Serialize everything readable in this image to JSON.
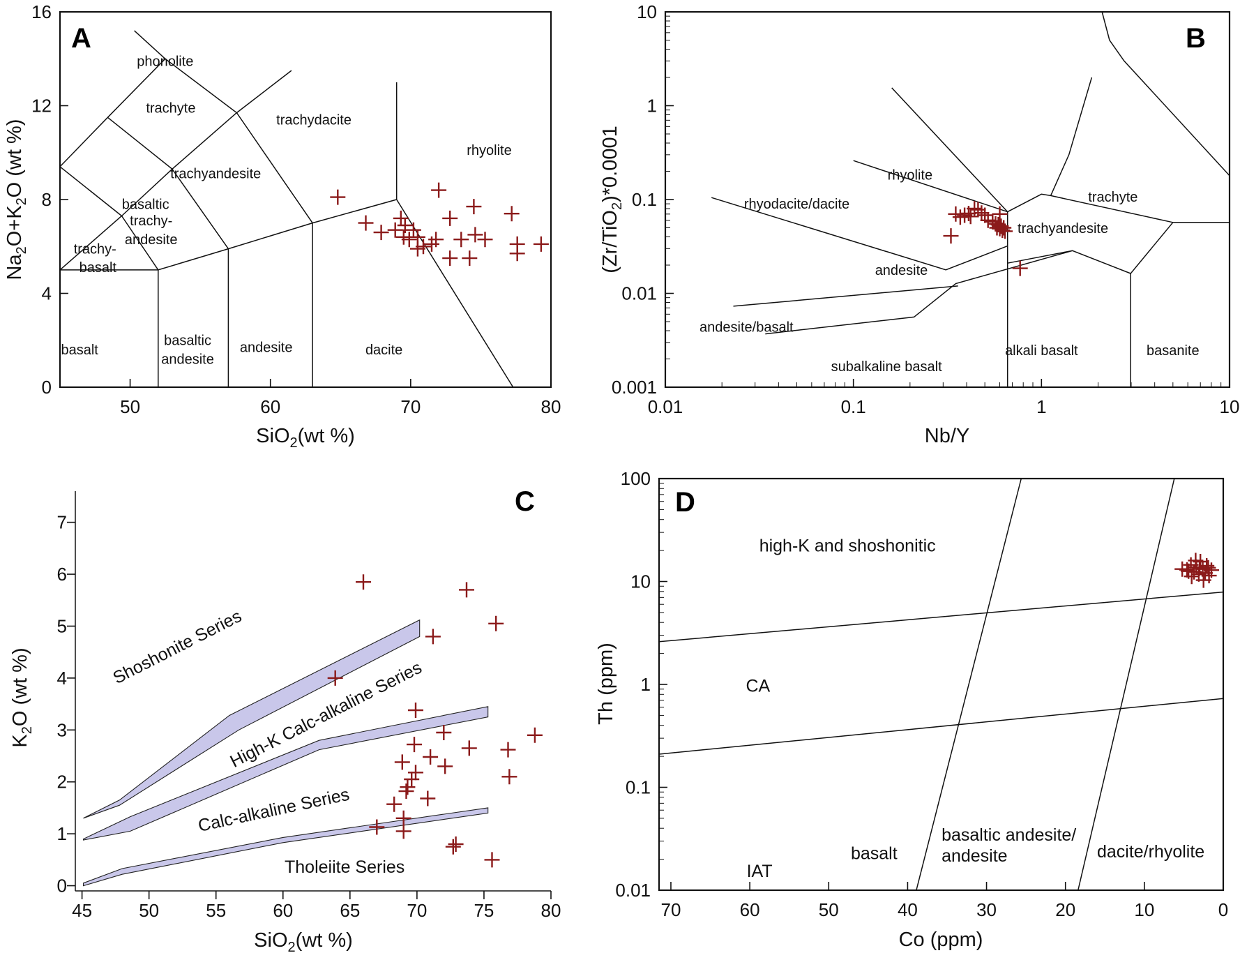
{
  "figure": {
    "marker_color": "#8b1a1a",
    "band_color": "#c9c7ea"
  },
  "chart_data": [
    {
      "panel": "A",
      "type": "scatter",
      "xlabel": "SiO",
      "xlabel_sub": "2",
      "xlabel_tail": "(wt %)",
      "ylabel_parts": [
        "Na",
        "2",
        "O+K",
        "2",
        "O (wt %)"
      ],
      "xlim": [
        45,
        80
      ],
      "ylim": [
        0,
        16
      ],
      "xticks": [
        50,
        60,
        70,
        80
      ],
      "yticks": [
        0,
        4,
        8,
        12,
        16
      ],
      "fields": [
        {
          "name": "phonolite",
          "x": 52.5,
          "y": 13.7
        },
        {
          "name": "trachyte",
          "x": 52.9,
          "y": 11.7
        },
        {
          "name": "trachydacite",
          "x": 63.1,
          "y": 11.2
        },
        {
          "name": "rhyolite",
          "x": 75.6,
          "y": 9.9
        },
        {
          "name": "trachyandesite",
          "x": 56.1,
          "y": 8.9
        },
        {
          "name": "basaltic",
          "x": 51.1,
          "y": 7.6
        },
        {
          "name": "trachy-",
          "x": 51.5,
          "y": 6.9
        },
        {
          "name": "andesite",
          "x": 51.5,
          "y": 6.1
        },
        {
          "name": "trachy-",
          "x": 47.5,
          "y": 5.7
        },
        {
          "name": "basalt",
          "x": 47.7,
          "y": 4.9
        },
        {
          "name": "basalt",
          "x": 46.4,
          "y": 1.4
        },
        {
          "name": "basaltic",
          "x": 54.1,
          "y": 1.8
        },
        {
          "name": "andesite",
          "x": 54.1,
          "y": 1.0
        },
        {
          "name": "andesite",
          "x": 59.7,
          "y": 1.5
        },
        {
          "name": "dacite",
          "x": 68.1,
          "y": 1.4
        }
      ],
      "boundaries": [
        [
          [
            45,
            5
          ],
          [
            52,
            5
          ],
          [
            57,
            5.9
          ],
          [
            63,
            7
          ],
          [
            69,
            8
          ],
          [
            69,
            13
          ]
        ],
        [
          [
            52,
            0
          ],
          [
            52,
            5
          ]
        ],
        [
          [
            57,
            0
          ],
          [
            57,
            5.9
          ]
        ],
        [
          [
            63,
            0
          ],
          [
            63,
            7
          ]
        ],
        [
          [
            77.3,
            0
          ],
          [
            69,
            8
          ]
        ],
        [
          [
            45,
            5
          ],
          [
            49.4,
            7.3
          ],
          [
            53,
            9.3
          ],
          [
            57.6,
            11.7
          ],
          [
            61.5,
            13.5
          ]
        ],
        [
          [
            45,
            9.4
          ],
          [
            48.4,
            11.5
          ],
          [
            52.5,
            14
          ],
          [
            57.6,
            11.7
          ],
          [
            63,
            7
          ]
        ],
        [
          [
            48.4,
            11.5
          ],
          [
            53,
            9.3
          ],
          [
            57,
            5.9
          ]
        ],
        [
          [
            49.4,
            7.3
          ],
          [
            52,
            5
          ]
        ],
        [
          [
            52.5,
            14
          ],
          [
            50.3,
            15.2
          ]
        ],
        [
          [
            45,
            9.4
          ],
          [
            49.4,
            7.3
          ]
        ]
      ],
      "points": [
        [
          64.8,
          8.1
        ],
        [
          66.8,
          7.0
        ],
        [
          67.9,
          6.6
        ],
        [
          68.9,
          6.7
        ],
        [
          69.3,
          7.2
        ],
        [
          69.6,
          6.9
        ],
        [
          69.5,
          6.4
        ],
        [
          69.9,
          6.3
        ],
        [
          70.2,
          6.7
        ],
        [
          70.5,
          6.4
        ],
        [
          70.5,
          5.9
        ],
        [
          70.9,
          6.0
        ],
        [
          71.5,
          6.1
        ],
        [
          71.8,
          6.3
        ],
        [
          72.0,
          8.4
        ],
        [
          72.8,
          7.2
        ],
        [
          72.8,
          5.5
        ],
        [
          73.6,
          6.3
        ],
        [
          74.2,
          5.5
        ],
        [
          74.5,
          7.7
        ],
        [
          74.6,
          6.5
        ],
        [
          75.3,
          6.3
        ],
        [
          77.2,
          7.4
        ],
        [
          77.6,
          6.1
        ],
        [
          77.6,
          5.7
        ],
        [
          79.3,
          6.1
        ]
      ]
    },
    {
      "panel": "B",
      "type": "scatter",
      "xlabel": "Nb/Y",
      "ylabel_parts": [
        "(Zr/TiO",
        "2",
        ")*0.0001"
      ],
      "xscale": "log",
      "yscale": "log",
      "xlim": [
        0.01,
        10
      ],
      "ylim": [
        0.001,
        10
      ],
      "xticks": [
        0.01,
        0.1,
        1,
        10
      ],
      "xtick_labels": [
        "0.01",
        "0.1",
        "1",
        "10"
      ],
      "yticks": [
        0.001,
        0.01,
        0.1,
        1,
        10
      ],
      "ytick_labels": [
        "0.001",
        "0.01",
        "0.1",
        "1",
        "10"
      ],
      "fields": [
        {
          "name": "rhyolite",
          "x": 0.2,
          "y": 0.163
        },
        {
          "name": "trachyte",
          "x": 2.4,
          "y": 0.095
        },
        {
          "name": "rhyodacite/dacite",
          "x": 0.05,
          "y": 0.08
        },
        {
          "name": "trachyandesite",
          "x": 1.3,
          "y": 0.044
        },
        {
          "name": "andesite",
          "x": 0.18,
          "y": 0.0158
        },
        {
          "name": "andesite/basalt",
          "x": 0.027,
          "y": 0.0039
        },
        {
          "name": "subalkaline basalt",
          "x": 0.15,
          "y": 0.00148
        },
        {
          "name": "alkali basalt",
          "x": 1.0,
          "y": 0.0022
        },
        {
          "name": "basanite",
          "x": 5.0,
          "y": 0.0022
        }
      ],
      "boundaries": [
        [
          [
            0.0176,
            0.105
          ],
          [
            0.31,
            0.0178
          ],
          [
            0.66,
            0.032
          ]
        ],
        [
          [
            0.1,
            0.26
          ],
          [
            0.66,
            0.074
          ]
        ],
        [
          [
            0.16,
            1.55
          ],
          [
            0.66,
            0.074
          ]
        ],
        [
          [
            0.023,
            0.0073
          ],
          [
            0.36,
            0.012
          ]
        ],
        [
          [
            0.034,
            0.0037
          ],
          [
            0.21,
            0.0056
          ],
          [
            0.35,
            0.0127
          ],
          [
            1.46,
            0.0285
          ],
          [
            2.98,
            0.0163
          ]
        ],
        [
          [
            0.66,
            0.001
          ],
          [
            0.66,
            0.074
          ]
        ],
        [
          [
            0.66,
            0.074
          ],
          [
            1.0,
            0.114
          ],
          [
            1.12,
            0.11
          ],
          [
            5.0,
            0.057
          ],
          [
            10,
            0.057
          ]
        ],
        [
          [
            1.12,
            0.11
          ],
          [
            1.4,
            0.3
          ],
          [
            1.85,
            2.0
          ]
        ],
        [
          [
            5.0,
            0.057
          ],
          [
            2.98,
            0.0163
          ],
          [
            2.98,
            0.001
          ]
        ],
        [
          [
            2.1,
            10
          ],
          [
            2.3,
            5
          ],
          [
            2.75,
            3.0
          ],
          [
            10,
            0.18
          ]
        ],
        [
          [
            0.66,
            0.021
          ],
          [
            1.46,
            0.0285
          ]
        ]
      ],
      "points": [
        [
          0.35,
          0.07
        ],
        [
          0.37,
          0.065
        ],
        [
          0.39,
          0.068
        ],
        [
          0.41,
          0.071
        ],
        [
          0.42,
          0.066
        ],
        [
          0.44,
          0.08
        ],
        [
          0.46,
          0.078
        ],
        [
          0.48,
          0.072
        ],
        [
          0.5,
          0.068
        ],
        [
          0.52,
          0.06
        ],
        [
          0.55,
          0.058
        ],
        [
          0.57,
          0.055
        ],
        [
          0.58,
          0.05
        ],
        [
          0.59,
          0.054
        ],
        [
          0.6,
          0.049
        ],
        [
          0.61,
          0.052
        ],
        [
          0.62,
          0.047
        ],
        [
          0.63,
          0.05
        ],
        [
          0.64,
          0.046
        ],
        [
          0.6,
          0.07
        ],
        [
          0.33,
          0.041
        ],
        [
          0.77,
          0.0185
        ]
      ]
    },
    {
      "panel": "C",
      "type": "scatter",
      "xlabel": "SiO",
      "xlabel_sub": "2",
      "xlabel_tail": "(wt %)",
      "ylabel_parts": [
        "K",
        "2",
        "O (wt %)"
      ],
      "xlim": [
        44.5,
        80
      ],
      "ylim": [
        -0.1,
        7.6
      ],
      "xticks": [
        45,
        50,
        55,
        60,
        65,
        70,
        75,
        80
      ],
      "yticks": [
        0,
        1,
        2,
        3,
        4,
        5,
        6,
        7
      ],
      "series_labels": [
        {
          "name": "Shoshonite Series",
          "x": 52.3,
          "y": 4.5,
          "angle": -27
        },
        {
          "name": "High-K Calc-alkaline Series",
          "x": 63.4,
          "y": 3.2,
          "angle": -27
        },
        {
          "name": "Calc-alkaline Series",
          "x": 59.4,
          "y": 1.35,
          "angle": -12
        },
        {
          "name": "Tholeiite Series",
          "x": 64.6,
          "y": 0.25,
          "angle": 0
        }
      ],
      "bands": [
        [
          [
            45.1,
            1.3
          ],
          [
            47.8,
            1.65
          ],
          [
            56,
            3.28
          ],
          [
            70.2,
            5.12
          ],
          [
            70.2,
            4.8
          ],
          [
            56.7,
            3.0
          ],
          [
            47.8,
            1.55
          ],
          [
            45.1,
            1.3
          ]
        ],
        [
          [
            45.1,
            0.9
          ],
          [
            48.6,
            1.33
          ],
          [
            62.7,
            2.8
          ],
          [
            75.3,
            3.45
          ],
          [
            75.3,
            3.25
          ],
          [
            62.7,
            2.62
          ],
          [
            48.6,
            1.05
          ],
          [
            45.1,
            0.88
          ]
        ],
        [
          [
            45.1,
            0.05
          ],
          [
            48,
            0.33
          ],
          [
            60,
            0.93
          ],
          [
            75.3,
            1.5
          ],
          [
            75.3,
            1.4
          ],
          [
            60,
            0.83
          ],
          [
            48,
            0.22
          ],
          [
            45.1,
            0.0
          ]
        ]
      ],
      "points": [
        [
          66.0,
          5.85
        ],
        [
          73.7,
          5.7
        ],
        [
          75.9,
          5.05
        ],
        [
          71.2,
          4.8
        ],
        [
          63.9,
          4.0
        ],
        [
          69.9,
          3.38
        ],
        [
          72.0,
          2.95
        ],
        [
          78.8,
          2.9
        ],
        [
          69.8,
          2.72
        ],
        [
          73.9,
          2.65
        ],
        [
          76.8,
          2.62
        ],
        [
          71.0,
          2.48
        ],
        [
          68.9,
          2.38
        ],
        [
          72.1,
          2.3
        ],
        [
          69.9,
          2.18
        ],
        [
          69.6,
          2.05
        ],
        [
          76.9,
          2.1
        ],
        [
          69.3,
          1.9
        ],
        [
          69.2,
          1.82
        ],
        [
          70.8,
          1.68
        ],
        [
          68.3,
          1.57
        ],
        [
          69.0,
          1.3
        ],
        [
          67.0,
          1.13
        ],
        [
          69.0,
          1.05
        ],
        [
          72.9,
          0.8
        ],
        [
          72.7,
          0.75
        ],
        [
          75.6,
          0.5
        ]
      ]
    },
    {
      "panel": "D",
      "type": "scatter",
      "xlabel": "Co (ppm)",
      "ylabel": "Th (ppm)",
      "xlim": [
        71.5,
        0
      ],
      "yscale": "log",
      "ylim": [
        0.01,
        100
      ],
      "xticks": [
        70,
        60,
        50,
        40,
        30,
        20,
        10,
        0
      ],
      "yticks": [
        0.01,
        0.1,
        1,
        10,
        100
      ],
      "ytick_labels": [
        "0.01",
        "0.1",
        "1",
        "10",
        "100"
      ],
      "fields": [
        {
          "name": "high-K and shoshonitic",
          "x": 58.8,
          "y": 19.6
        },
        {
          "name": "CA",
          "x": 60.5,
          "y": 0.85
        },
        {
          "name": "IAT",
          "x": 60.4,
          "y": 0.0135
        },
        {
          "name": "basalt",
          "x": 47.2,
          "y": 0.0201
        },
        {
          "name": "basaltic andesite/",
          "x": 35.7,
          "y": 0.0302
        },
        {
          "name": "andesite",
          "x": 35.7,
          "y": 0.0189
        },
        {
          "name": "dacite/rhyolite",
          "x": 16.0,
          "y": 0.0209
        }
      ],
      "boundaries": [
        [
          [
            71.5,
            2.6
          ],
          [
            0,
            7.9
          ]
        ],
        [
          [
            71.5,
            0.21
          ],
          [
            0,
            0.73
          ]
        ],
        [
          [
            38.9,
            0.01
          ],
          [
            25.6,
            100
          ]
        ],
        [
          [
            18.4,
            0.01
          ],
          [
            6.2,
            100
          ]
        ]
      ],
      "points": [
        [
          5.2,
          13.2
        ],
        [
          4.6,
          13.0
        ],
        [
          4.1,
          14.5
        ],
        [
          3.7,
          12.4
        ],
        [
          3.4,
          13.8
        ],
        [
          3.1,
          11.8
        ],
        [
          2.9,
          15.6
        ],
        [
          2.6,
          13.2
        ],
        [
          2.3,
          12.1
        ],
        [
          2.1,
          14.2
        ],
        [
          1.8,
          11.4
        ],
        [
          1.5,
          12.9
        ],
        [
          4.0,
          11.2
        ],
        [
          3.5,
          16.0
        ],
        [
          2.5,
          10.3
        ],
        [
          3.0,
          13.5
        ],
        [
          4.4,
          12.6
        ],
        [
          1.9,
          13.6
        ]
      ]
    }
  ]
}
